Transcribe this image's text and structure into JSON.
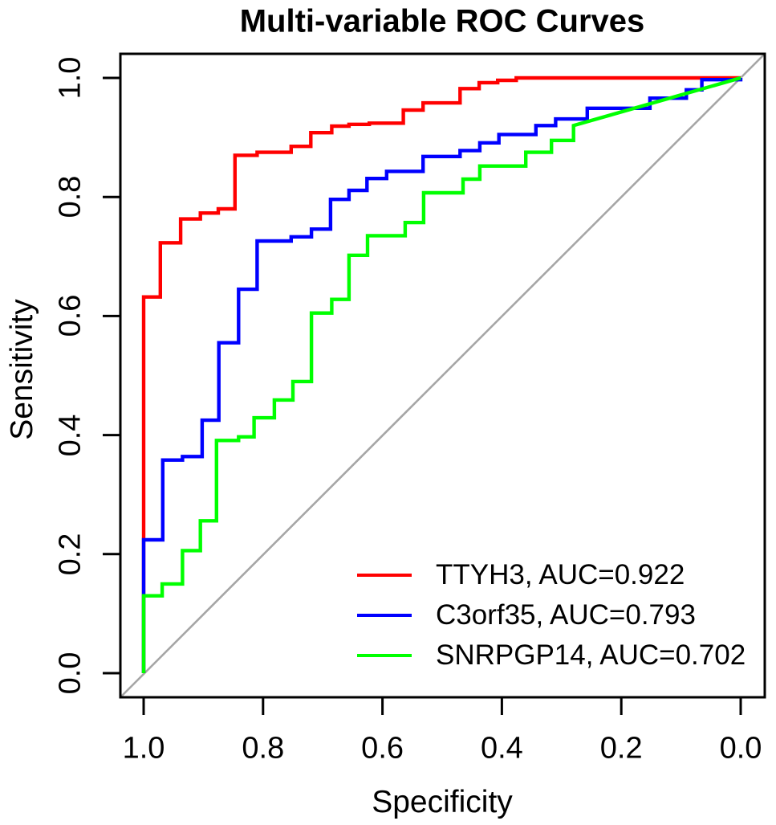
{
  "title": "Multi-variable ROC Curves",
  "axes": {
    "x": {
      "label": "Specificity"
    },
    "y": {
      "label": "Sensitivity"
    }
  },
  "chart_data": {
    "type": "line",
    "subtype": "roc-step-curves",
    "title": "Multi-variable ROC Curves",
    "xlabel": "Specificity",
    "ylabel": "Sensitivity",
    "x_axis_reversed": true,
    "xlim": [
      1.0,
      0.0
    ],
    "ylim": [
      0.0,
      1.0
    ],
    "x_ticks": [
      "1.0",
      "0.8",
      "0.6",
      "0.4",
      "0.2",
      "0.0"
    ],
    "y_ticks": [
      "0.0",
      "0.2",
      "0.4",
      "0.6",
      "0.8",
      "1.0"
    ],
    "grid": false,
    "legend_position": "bottom-right",
    "axis_color": "#000000",
    "diagonal_reference": {
      "color": "#a6a6a6",
      "from": [
        1.0,
        0.0
      ],
      "to": [
        0.0,
        1.0
      ]
    },
    "series": [
      {
        "name": "TTYH3",
        "auc": 0.922,
        "label": "TTYH3, AUC=0.922",
        "color": "#ff0000",
        "points": [
          [
            1.0,
            0.0
          ],
          [
            1.0,
            0.632
          ],
          [
            0.972,
            0.632
          ],
          [
            0.972,
            0.723
          ],
          [
            0.938,
            0.723
          ],
          [
            0.938,
            0.763
          ],
          [
            0.905,
            0.763
          ],
          [
            0.905,
            0.773
          ],
          [
            0.875,
            0.773
          ],
          [
            0.875,
            0.78
          ],
          [
            0.847,
            0.78
          ],
          [
            0.847,
            0.87
          ],
          [
            0.81,
            0.87
          ],
          [
            0.81,
            0.875
          ],
          [
            0.753,
            0.875
          ],
          [
            0.753,
            0.885
          ],
          [
            0.72,
            0.885
          ],
          [
            0.72,
            0.908
          ],
          [
            0.685,
            0.908
          ],
          [
            0.685,
            0.919
          ],
          [
            0.656,
            0.919
          ],
          [
            0.656,
            0.922
          ],
          [
            0.622,
            0.922
          ],
          [
            0.622,
            0.924
          ],
          [
            0.565,
            0.924
          ],
          [
            0.565,
            0.946
          ],
          [
            0.532,
            0.946
          ],
          [
            0.532,
            0.958
          ],
          [
            0.47,
            0.958
          ],
          [
            0.47,
            0.982
          ],
          [
            0.438,
            0.982
          ],
          [
            0.438,
            0.992
          ],
          [
            0.407,
            0.992
          ],
          [
            0.407,
            0.996
          ],
          [
            0.376,
            0.996
          ],
          [
            0.376,
            1.0
          ],
          [
            0.0,
            1.0
          ]
        ]
      },
      {
        "name": "C3orf35",
        "auc": 0.793,
        "label": "C3orf35, AUC=0.793",
        "color": "#0000ff",
        "points": [
          [
            1.0,
            0.0
          ],
          [
            1.0,
            0.224
          ],
          [
            0.968,
            0.224
          ],
          [
            0.968,
            0.358
          ],
          [
            0.935,
            0.358
          ],
          [
            0.935,
            0.364
          ],
          [
            0.902,
            0.364
          ],
          [
            0.902,
            0.425
          ],
          [
            0.874,
            0.425
          ],
          [
            0.874,
            0.555
          ],
          [
            0.841,
            0.555
          ],
          [
            0.841,
            0.645
          ],
          [
            0.81,
            0.645
          ],
          [
            0.81,
            0.726
          ],
          [
            0.753,
            0.726
          ],
          [
            0.753,
            0.733
          ],
          [
            0.719,
            0.733
          ],
          [
            0.719,
            0.746
          ],
          [
            0.687,
            0.746
          ],
          [
            0.687,
            0.796
          ],
          [
            0.656,
            0.796
          ],
          [
            0.656,
            0.811
          ],
          [
            0.626,
            0.811
          ],
          [
            0.626,
            0.831
          ],
          [
            0.593,
            0.831
          ],
          [
            0.593,
            0.843
          ],
          [
            0.532,
            0.843
          ],
          [
            0.532,
            0.868
          ],
          [
            0.47,
            0.868
          ],
          [
            0.47,
            0.878
          ],
          [
            0.437,
            0.878
          ],
          [
            0.437,
            0.891
          ],
          [
            0.405,
            0.891
          ],
          [
            0.405,
            0.905
          ],
          [
            0.343,
            0.905
          ],
          [
            0.343,
            0.92
          ],
          [
            0.31,
            0.92
          ],
          [
            0.31,
            0.931
          ],
          [
            0.257,
            0.931
          ],
          [
            0.257,
            0.949
          ],
          [
            0.21,
            0.949
          ],
          [
            0.21,
            0.949
          ],
          [
            0.152,
            0.949
          ],
          [
            0.152,
            0.966
          ],
          [
            0.091,
            0.966
          ],
          [
            0.091,
            0.98
          ],
          [
            0.065,
            0.98
          ],
          [
            0.065,
            0.997
          ],
          [
            0.0,
            0.997
          ],
          [
            0.0,
            1.0
          ]
        ]
      },
      {
        "name": "SNRPGP14",
        "auc": 0.702,
        "label": "SNRPGP14, AUC=0.702",
        "color": "#00ff00",
        "points": [
          [
            1.0,
            0.0
          ],
          [
            1.0,
            0.13
          ],
          [
            0.969,
            0.13
          ],
          [
            0.969,
            0.15
          ],
          [
            0.935,
            0.15
          ],
          [
            0.935,
            0.206
          ],
          [
            0.905,
            0.206
          ],
          [
            0.905,
            0.256
          ],
          [
            0.878,
            0.256
          ],
          [
            0.878,
            0.391
          ],
          [
            0.841,
            0.391
          ],
          [
            0.841,
            0.397
          ],
          [
            0.815,
            0.397
          ],
          [
            0.815,
            0.429
          ],
          [
            0.781,
            0.429
          ],
          [
            0.781,
            0.459
          ],
          [
            0.75,
            0.459
          ],
          [
            0.75,
            0.49
          ],
          [
            0.719,
            0.49
          ],
          [
            0.719,
            0.605
          ],
          [
            0.685,
            0.605
          ],
          [
            0.685,
            0.628
          ],
          [
            0.656,
            0.628
          ],
          [
            0.656,
            0.702
          ],
          [
            0.625,
            0.702
          ],
          [
            0.625,
            0.735
          ],
          [
            0.562,
            0.735
          ],
          [
            0.562,
            0.757
          ],
          [
            0.531,
            0.757
          ],
          [
            0.531,
            0.807
          ],
          [
            0.465,
            0.807
          ],
          [
            0.465,
            0.83
          ],
          [
            0.437,
            0.83
          ],
          [
            0.437,
            0.852
          ],
          [
            0.36,
            0.852
          ],
          [
            0.36,
            0.875
          ],
          [
            0.317,
            0.875
          ],
          [
            0.317,
            0.895
          ],
          [
            0.28,
            0.895
          ],
          [
            0.28,
            0.92
          ],
          [
            0.0,
            1.0
          ]
        ]
      }
    ]
  }
}
